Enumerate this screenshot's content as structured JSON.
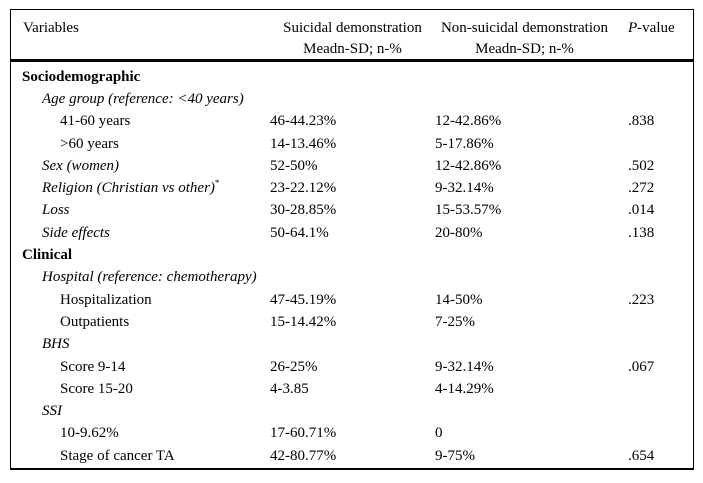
{
  "page": {
    "background_color": "#ffffff",
    "text_color": "#000000",
    "border_color": "#000000"
  },
  "table": {
    "headers": {
      "variables": "Variables",
      "suicidal_line1": "Suicidal demonstration",
      "suicidal_line2": "Meadn-SD; n-%",
      "nonsuicidal_line1": "Non-suicidal demonstration",
      "nonsuicidal_line2": "Meadn-SD; n-%",
      "pvalue_italic": "P",
      "pvalue_rest": "-value"
    },
    "rows": [
      {
        "label": "Sociodemographic",
        "level": "section",
        "suicidal": "",
        "nonsuicidal": "",
        "p": ""
      },
      {
        "label": "Age group (reference: <40 years)",
        "level": "variable",
        "suicidal": "",
        "nonsuicidal": "",
        "p": ""
      },
      {
        "label": "41-60 years",
        "level": "item",
        "suicidal": "46-44.23%",
        "nonsuicidal": "12-42.86%",
        "p": ".838"
      },
      {
        "label": ">60 years",
        "level": "item",
        "suicidal": "14-13.46%",
        "nonsuicidal": "5-17.86%",
        "p": ""
      },
      {
        "label": "Sex (women)",
        "level": "variable",
        "suicidal": "52-50%",
        "nonsuicidal": "12-42.86%",
        "p": ".502"
      },
      {
        "label": "Religion (Christian vs other)",
        "superscript": "*",
        "level": "variable",
        "suicidal": "23-22.12%",
        "nonsuicidal": "9-32.14%",
        "p": ".272"
      },
      {
        "label": "Loss",
        "level": "variable",
        "suicidal": "30-28.85%",
        "nonsuicidal": "15-53.57%",
        "p": ".014"
      },
      {
        "label": "Side effects",
        "level": "variable",
        "suicidal": "50-64.1%",
        "nonsuicidal": "20-80%",
        "p": ".138"
      },
      {
        "label": "Clinical",
        "level": "section",
        "suicidal": "",
        "nonsuicidal": "",
        "p": ""
      },
      {
        "label": "Hospital (reference: chemotherapy)",
        "level": "variable",
        "suicidal": "",
        "nonsuicidal": "",
        "p": ""
      },
      {
        "label": "Hospitalization",
        "level": "item",
        "suicidal": "47-45.19%",
        "nonsuicidal": "14-50%",
        "p": ".223"
      },
      {
        "label": "Outpatients",
        "level": "item",
        "suicidal": "15-14.42%",
        "nonsuicidal": "7-25%",
        "p": ""
      },
      {
        "label": "BHS",
        "level": "variable",
        "suicidal": "",
        "nonsuicidal": "",
        "p": ""
      },
      {
        "label": "Score 9-14",
        "level": "item",
        "suicidal": "26-25%",
        "nonsuicidal": "9-32.14%",
        "p": ".067"
      },
      {
        "label": "Score 15-20",
        "level": "item",
        "suicidal": "4-3.85",
        "nonsuicidal": "4-14.29%",
        "p": ""
      },
      {
        "label": "SSI",
        "level": "variable",
        "suicidal": "",
        "nonsuicidal": "",
        "p": ""
      },
      {
        "label": "10-9.62%",
        "level": "item",
        "suicidal": "17-60.71%",
        "nonsuicidal": "0",
        "p": ""
      },
      {
        "label": "Stage of cancer TA",
        "level": "item",
        "suicidal": "42-80.77%",
        "nonsuicidal": "9-75%",
        "p": ".654"
      }
    ]
  }
}
